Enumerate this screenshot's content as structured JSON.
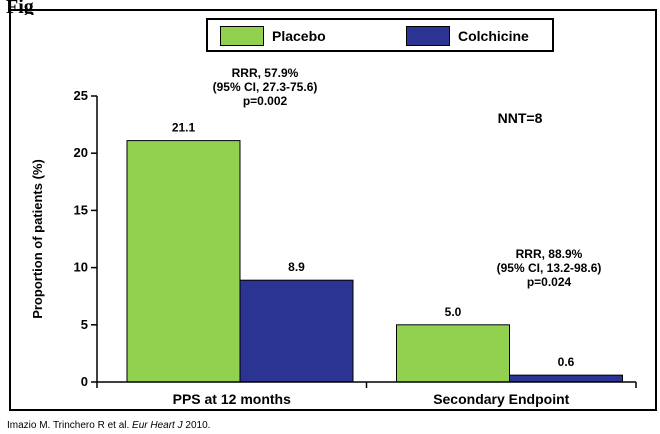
{
  "slide_title": "Fig",
  "citation": {
    "authors": "Imazio M. Trinchero R et al.",
    "journal": "Eur Heart J",
    "year": "2010."
  },
  "chart_data": {
    "type": "bar",
    "categories": [
      "PPS at 12 months",
      "Secondary Endpoint"
    ],
    "series": [
      {
        "name": "Placebo",
        "color": "#92D050",
        "values": [
          21.1,
          5.0
        ],
        "labels": [
          "21.1",
          "5.0"
        ]
      },
      {
        "name": "Colchicine",
        "color": "#2B3393",
        "values": [
          8.9,
          0.6
        ],
        "labels": [
          "8.9",
          "0.6"
        ]
      }
    ],
    "ylabel": "Proportion of patients (%)",
    "ylim": [
      0,
      25
    ],
    "yticks": [
      0,
      5,
      10,
      15,
      20,
      25
    ],
    "grid": false,
    "legend_position": "top",
    "annotations": [
      {
        "lines": [
          "RRR, 57.9%",
          "(95% CI, 27.3-75.6)",
          "p=0.002"
        ]
      },
      {
        "lines": [
          "RRR, 88.9%",
          "(95% CI, 13.2-98.6)",
          "p=0.024"
        ]
      }
    ],
    "nnt": "NNT=8"
  }
}
